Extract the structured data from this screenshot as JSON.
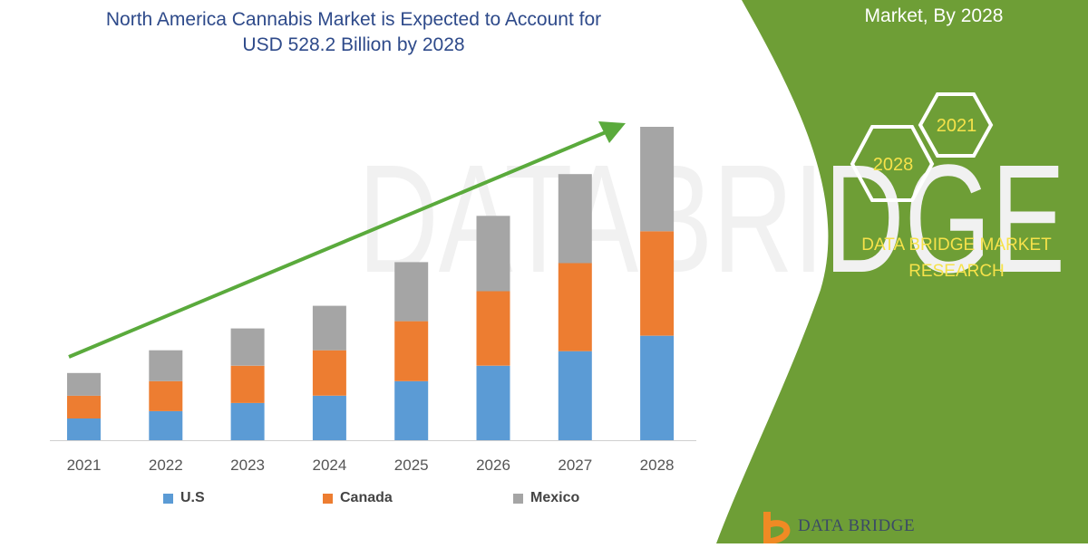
{
  "header": {
    "title_line1": "North America Cannabis Market is Expected to Account for",
    "title_line2": "USD 528.2 Billion by 2028",
    "right_heading": "Market, By 2028"
  },
  "badges": {
    "hex_2021": "2021",
    "hex_2028": "2028"
  },
  "brand": {
    "line1": "DATA BRIDGE MARKET",
    "line2": "RESEARCH",
    "logo_text": "DATA BRIDGE"
  },
  "colors": {
    "us": "#5b9bd5",
    "canada": "#ed7d31",
    "mexico": "#a5a5a5",
    "trend_arrow": "#5aaa3c",
    "panel_green": "#6e9e36",
    "brand_yellow": "#f6e24a"
  },
  "chart_data": {
    "type": "bar",
    "stacked": true,
    "categories": [
      "2021",
      "2022",
      "2023",
      "2024",
      "2025",
      "2026",
      "2027",
      "2028"
    ],
    "series": [
      {
        "name": "U.S",
        "values": [
          24,
          32,
          41,
          49,
          65,
          82,
          98,
          115
        ]
      },
      {
        "name": "Canada",
        "values": [
          25,
          33,
          41,
          50,
          66,
          82,
          97,
          115
        ]
      },
      {
        "name": "Mexico",
        "values": [
          25,
          34,
          41,
          49,
          65,
          83,
          98,
          115
        ]
      }
    ],
    "ylim": [
      0,
      345
    ],
    "grid": false,
    "legend_position": "bottom",
    "annotations": [
      "upward trend arrow"
    ]
  }
}
